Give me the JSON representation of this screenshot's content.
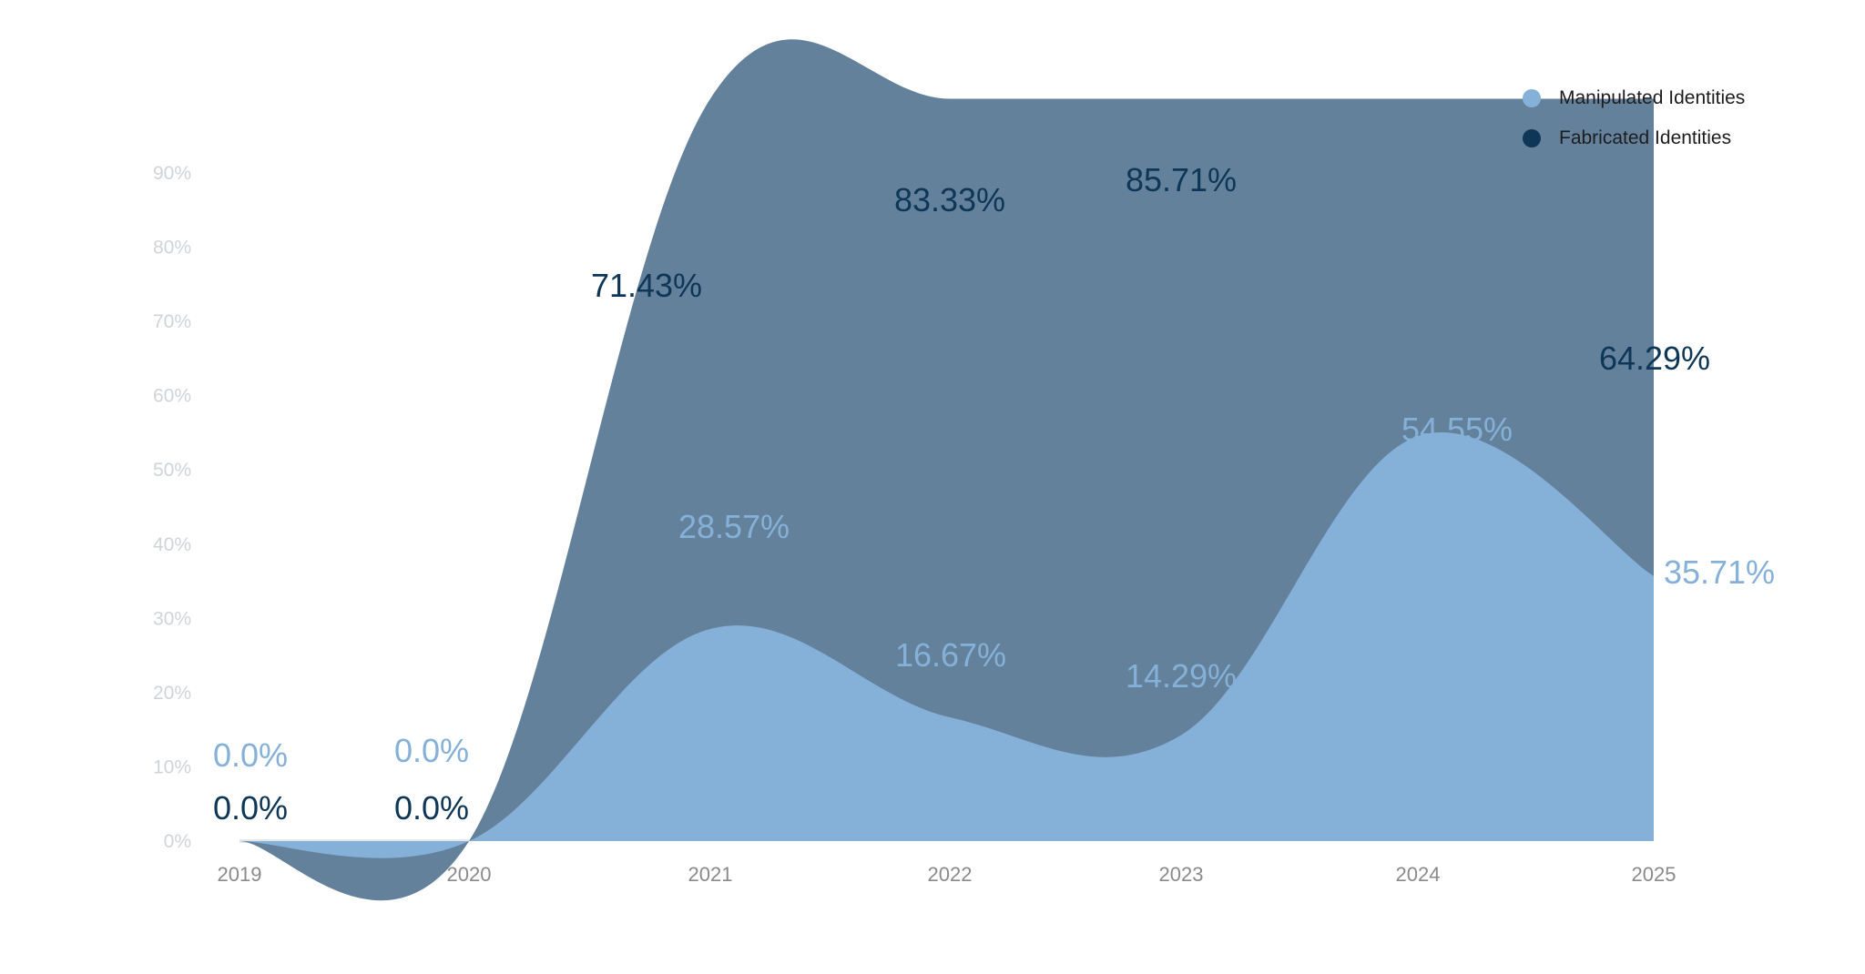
{
  "chart_data": {
    "type": "area",
    "title": "",
    "xlabel": "",
    "ylabel": "",
    "x": [
      "2019",
      "2020",
      "2021",
      "2022",
      "2023",
      "2024",
      "2025"
    ],
    "ylim": [
      0,
      90
    ],
    "yticks": [
      "0%",
      "10%",
      "20%",
      "30%",
      "40%",
      "50%",
      "60%",
      "70%",
      "80%",
      "90%"
    ],
    "legend_position": "top-right",
    "grid": false,
    "series": [
      {
        "name": "Manipulated Identities",
        "color": "#85b1d9",
        "values": [
          0.0,
          0.0,
          28.57,
          16.67,
          14.29,
          54.55,
          35.71
        ],
        "labels": [
          "0.0%",
          "0.0%",
          "28.57%",
          "16.67%",
          "14.29%",
          "54.55%",
          "35.71%"
        ]
      },
      {
        "name": "Fabricated Identities",
        "color": "#0d3657",
        "area_color": "#64819c",
        "values": [
          0.0,
          0.0,
          71.43,
          83.33,
          85.71,
          45.45,
          64.29
        ],
        "labels": [
          "0.0%",
          "0.0%",
          "71.43%",
          "83.33%",
          "85.71%",
          "",
          "64.29%"
        ]
      }
    ]
  }
}
